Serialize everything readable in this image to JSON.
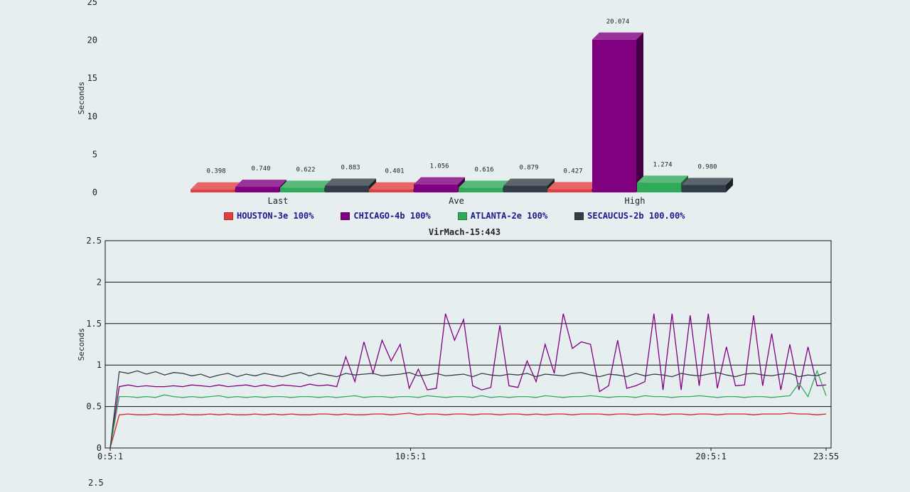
{
  "legend": [
    {
      "label": "HOUSTON-3e 100%",
      "color": "#e04040"
    },
    {
      "label": "CHICAGO-4b 100%",
      "color": "#800080"
    },
    {
      "label": "ATLANTA-2e 100%",
      "color": "#2eaa5a"
    },
    {
      "label": "SECAUCUS-2b 100.00%",
      "color": "#333d47"
    }
  ],
  "bottom_next_tick": "2.5",
  "chart_data": [
    {
      "type": "bar",
      "ylabel": "Seconds",
      "ylim": [
        0,
        25
      ],
      "yticks": [
        "0",
        "5",
        "10",
        "15",
        "20",
        "25"
      ],
      "categories": [
        "Last",
        "Ave",
        "High"
      ],
      "series": [
        {
          "name": "HOUSTON-3e 100%",
          "color": "#e04040",
          "values": [
            0.398,
            0.401,
            0.427
          ],
          "labels": [
            "0.398",
            "0.401",
            "0.427"
          ]
        },
        {
          "name": "CHICAGO-4b 100%",
          "color": "#800080",
          "values": [
            0.74,
            1.056,
            20.074
          ],
          "labels": [
            "0.740",
            "1.056",
            "20.074"
          ]
        },
        {
          "name": "ATLANTA-2e 100%",
          "color": "#2eaa5a",
          "values": [
            0.622,
            0.616,
            1.274
          ],
          "labels": [
            "0.622",
            "0.616",
            "1.274"
          ]
        },
        {
          "name": "SECAUCUS-2b 100.00%",
          "color": "#333d47",
          "values": [
            0.883,
            0.879,
            0.98
          ],
          "labels": [
            "0.883",
            "0.879",
            "0.980"
          ]
        }
      ]
    },
    {
      "type": "line",
      "title": "VirMach-15:443",
      "ylabel": "Seconds",
      "ylim": [
        0,
        2.5
      ],
      "yticks": [
        "0",
        "0.5",
        "1",
        "1.5",
        "2",
        "2.5"
      ],
      "xticks": [
        "0:5:1",
        "10:5:1",
        "20:5:1",
        "23:55"
      ],
      "series": [
        {
          "name": "HOUSTON-3e 100%",
          "color": "#d42020",
          "values": [
            0,
            0.4,
            0.41,
            0.4,
            0.4,
            0.41,
            0.4,
            0.4,
            0.41,
            0.4,
            0.4,
            0.41,
            0.4,
            0.41,
            0.4,
            0.4,
            0.41,
            0.4,
            0.41,
            0.4,
            0.41,
            0.4,
            0.4,
            0.41,
            0.41,
            0.4,
            0.41,
            0.4,
            0.4,
            0.41,
            0.41,
            0.4,
            0.41,
            0.42,
            0.4,
            0.41,
            0.41,
            0.4,
            0.41,
            0.41,
            0.4,
            0.41,
            0.41,
            0.4,
            0.41,
            0.41,
            0.4,
            0.41,
            0.4,
            0.41,
            0.41,
            0.4,
            0.41,
            0.41,
            0.41,
            0.4,
            0.41,
            0.41,
            0.4,
            0.41,
            0.41,
            0.4,
            0.41,
            0.41,
            0.4,
            0.41,
            0.41,
            0.4,
            0.41,
            0.41,
            0.41,
            0.4,
            0.41,
            0.41,
            0.41,
            0.42,
            0.41,
            0.41,
            0.4,
            0.41
          ]
        },
        {
          "name": "CHICAGO-4b 100%",
          "color": "#800080",
          "values": [
            0,
            0.74,
            0.76,
            0.74,
            0.75,
            0.74,
            0.74,
            0.75,
            0.74,
            0.76,
            0.75,
            0.74,
            0.76,
            0.74,
            0.75,
            0.76,
            0.74,
            0.76,
            0.74,
            0.76,
            0.75,
            0.74,
            0.77,
            0.75,
            0.76,
            0.74,
            1.1,
            0.8,
            1.28,
            0.9,
            1.3,
            1.05,
            1.25,
            0.72,
            0.95,
            0.7,
            0.72,
            1.62,
            1.3,
            1.55,
            0.75,
            0.7,
            0.73,
            1.48,
            0.75,
            0.73,
            1.05,
            0.8,
            1.25,
            0.9,
            1.62,
            1.2,
            1.28,
            1.25,
            0.68,
            0.75,
            1.3,
            0.72,
            0.75,
            0.8,
            1.62,
            0.7,
            1.62,
            0.7,
            1.6,
            0.75,
            1.62,
            0.72,
            1.22,
            0.75,
            0.76,
            1.6,
            0.75,
            1.38,
            0.7,
            1.25,
            0.7,
            1.22,
            0.75,
            0.76
          ]
        },
        {
          "name": "ATLANTA-2e 100%",
          "color": "#2eaa5a",
          "values": [
            0,
            0.62,
            0.62,
            0.61,
            0.62,
            0.61,
            0.64,
            0.62,
            0.61,
            0.62,
            0.61,
            0.62,
            0.63,
            0.61,
            0.62,
            0.61,
            0.62,
            0.61,
            0.62,
            0.62,
            0.61,
            0.62,
            0.62,
            0.61,
            0.62,
            0.61,
            0.62,
            0.63,
            0.61,
            0.62,
            0.62,
            0.61,
            0.62,
            0.62,
            0.61,
            0.63,
            0.62,
            0.61,
            0.62,
            0.62,
            0.61,
            0.63,
            0.61,
            0.62,
            0.61,
            0.62,
            0.62,
            0.61,
            0.63,
            0.62,
            0.61,
            0.62,
            0.62,
            0.63,
            0.62,
            0.61,
            0.62,
            0.62,
            0.61,
            0.63,
            0.62,
            0.62,
            0.61,
            0.62,
            0.62,
            0.63,
            0.62,
            0.61,
            0.62,
            0.62,
            0.61,
            0.62,
            0.62,
            0.61,
            0.62,
            0.63,
            0.78,
            0.62,
            0.93,
            0.63
          ]
        },
        {
          "name": "SECAUCUS-2b 100.00%",
          "color": "#333d47",
          "values": [
            0,
            0.92,
            0.9,
            0.93,
            0.89,
            0.92,
            0.88,
            0.91,
            0.9,
            0.87,
            0.89,
            0.85,
            0.88,
            0.9,
            0.86,
            0.89,
            0.87,
            0.9,
            0.88,
            0.86,
            0.89,
            0.91,
            0.87,
            0.9,
            0.88,
            0.86,
            0.9,
            0.88,
            0.89,
            0.9,
            0.87,
            0.88,
            0.89,
            0.91,
            0.87,
            0.88,
            0.9,
            0.87,
            0.88,
            0.89,
            0.86,
            0.9,
            0.88,
            0.87,
            0.89,
            0.88,
            0.9,
            0.86,
            0.89,
            0.88,
            0.87,
            0.9,
            0.91,
            0.88,
            0.86,
            0.89,
            0.88,
            0.86,
            0.9,
            0.87,
            0.89,
            0.88,
            0.86,
            0.9,
            0.88,
            0.87,
            0.89,
            0.91,
            0.88,
            0.86,
            0.89,
            0.9,
            0.88,
            0.87,
            0.89,
            0.9,
            0.86,
            0.88,
            0.87,
            0.91
          ]
        }
      ]
    }
  ]
}
